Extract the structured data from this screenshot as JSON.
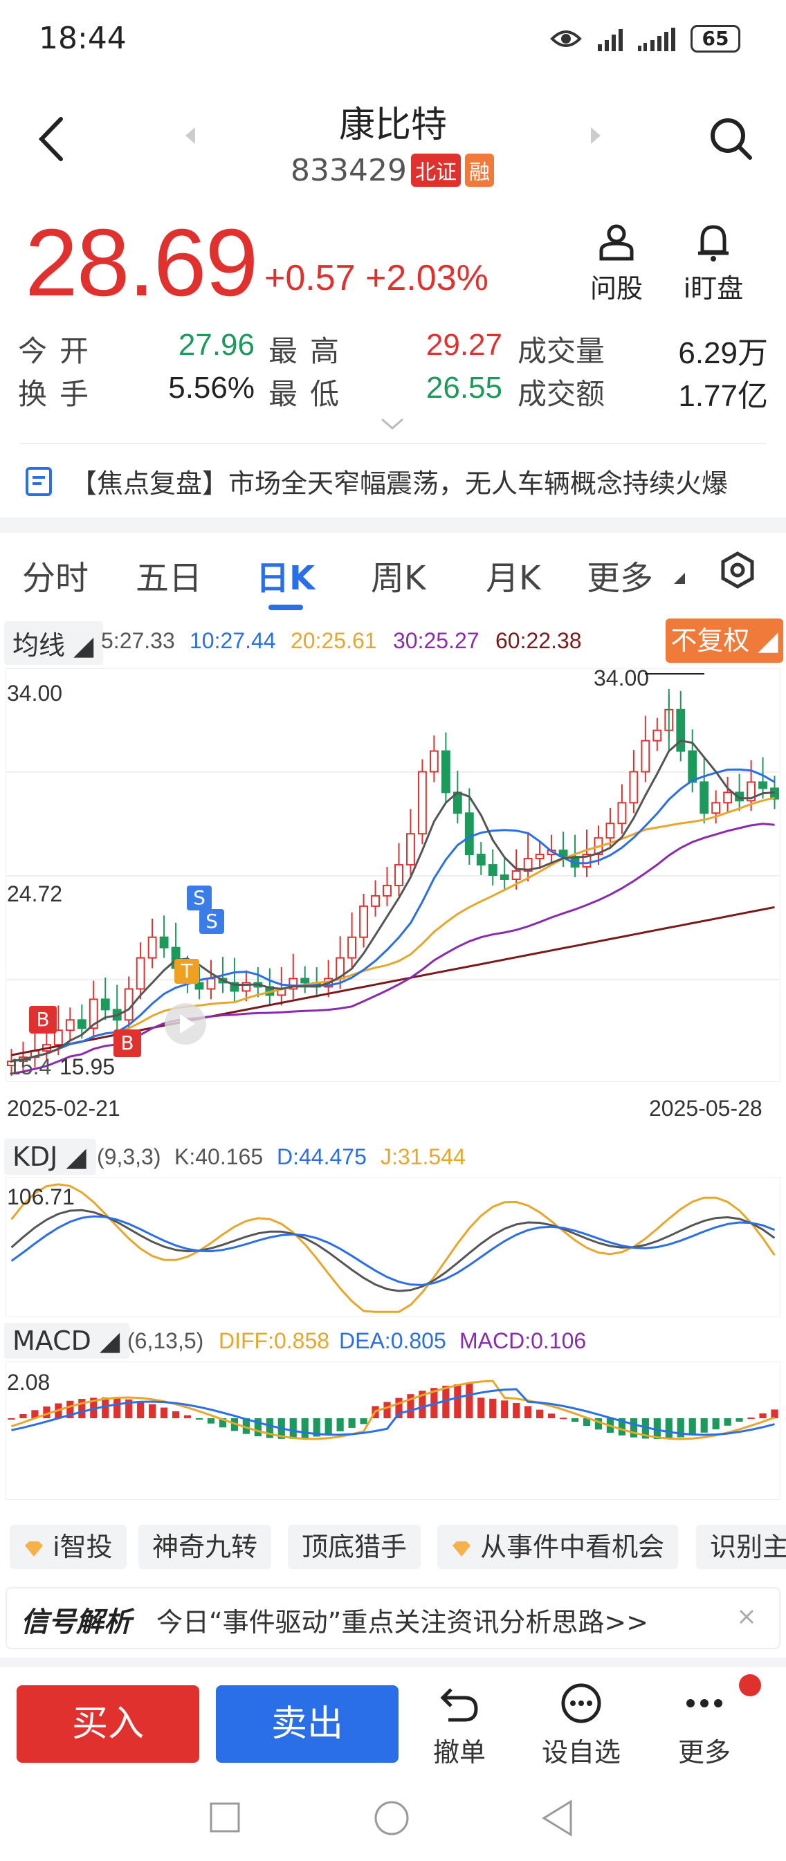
{
  "status": {
    "time": "18:44",
    "battery": "65"
  },
  "header": {
    "title": "康比特",
    "code": "833429",
    "tag_exchange": "北证",
    "tag_margin": "融"
  },
  "quote": {
    "price": "28.69",
    "change": "+0.57 +2.03%",
    "btn_ask": "问股",
    "btn_watch": "i盯盘"
  },
  "stats": {
    "open_label": "今开",
    "open": "27.96",
    "high_label": "最高",
    "high": "29.27",
    "volume_label": "成交量",
    "volume": "6.29万",
    "turnover_label": "换手",
    "turnover": "5.56%",
    "low_label": "最低",
    "low": "26.55",
    "amount_label": "成交额",
    "amount": "1.77亿"
  },
  "news": {
    "text": "【焦点复盘】市场全天窄幅震荡，无人车辆概念持续火爆"
  },
  "tabs": [
    "分时",
    "五日",
    "日K",
    "周K",
    "月K",
    "更多"
  ],
  "ma_row": {
    "chip": "均线",
    "ma5": "5:27.33",
    "ma10": "10:27.44",
    "ma20": "20:25.61",
    "ma30": "30:25.27",
    "ma60": "60:22.38",
    "fuquan": "不复权"
  },
  "kline": {
    "top_value": "34.00",
    "mid_value": "24.72",
    "peak_label": "34.00",
    "low_left": "15.4",
    "low_label": "15.95",
    "date_start": "2025-02-21",
    "date_end": "2025-05-28",
    "marker_b": "B",
    "marker_s": "S",
    "marker_t": "T"
  },
  "kdj": {
    "chip": "KDJ",
    "params": "(9,3,3)",
    "k": "K:40.165",
    "d": "D:44.475",
    "j": "J:31.544",
    "top": "106.71"
  },
  "macd": {
    "chip": "MACD",
    "params": "(6,13,5)",
    "diff": "DIFF:0.858",
    "dea": "DEA:0.805",
    "macd": "MACD:0.106",
    "top": "2.08"
  },
  "tools": [
    "i智投",
    "神奇九转",
    "顶底猎手",
    "从事件中看机会",
    "识别主"
  ],
  "signal": {
    "logo": "信号解析",
    "text": "今日“事件驱动”重点关注资讯分析思路>>"
  },
  "actions": {
    "buy": "买入",
    "sell": "卖出",
    "cancel": "撤单",
    "watchlist": "设自选",
    "more": "更多"
  },
  "colors": {
    "up": "#e0312f",
    "down": "#1c9a5c",
    "accent": "#2a6ee8",
    "orange": "#f07a3a",
    "ma5": "#555555",
    "ma10": "#2a6ee8",
    "ma20": "#e8a62a",
    "ma30": "#8a2ab0",
    "ma60": "#7a1a1a"
  }
}
